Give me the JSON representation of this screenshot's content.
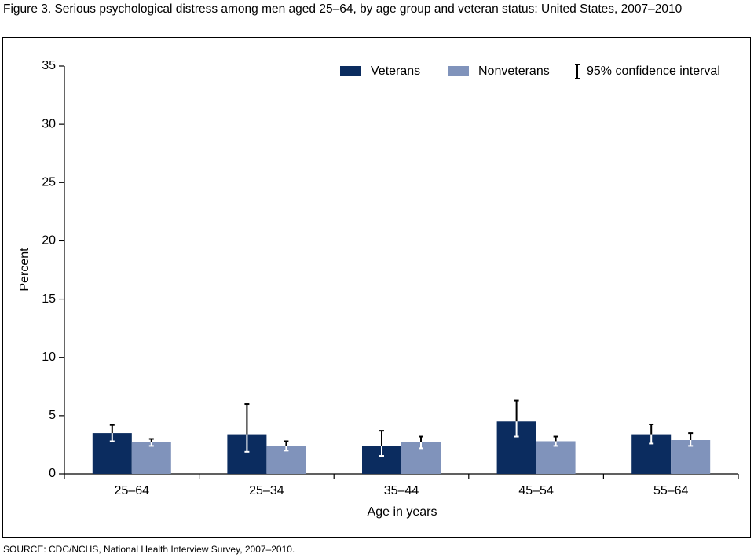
{
  "chart_data": {
    "type": "bar",
    "title": "Figure 3. Serious psychological distress among men aged 25–64, by age group and veteran status:  United States, 2007–2010",
    "xlabel": "Age in years",
    "ylabel": "Percent",
    "categories": [
      "25–64",
      "25–34",
      "35–44",
      "45–54",
      "55–64"
    ],
    "series": [
      {
        "name": "Veterans",
        "color": "#0b2c5f",
        "values": [
          3.5,
          3.4,
          2.4,
          4.5,
          3.4
        ],
        "ci_low": [
          2.8,
          1.9,
          1.55,
          3.2,
          2.6
        ],
        "ci_high": [
          4.2,
          6.0,
          3.7,
          6.3,
          4.25
        ]
      },
      {
        "name": "Nonveterans",
        "color": "#8093bb",
        "values": [
          2.7,
          2.4,
          2.7,
          2.8,
          2.9
        ],
        "ci_low": [
          2.4,
          2.0,
          2.2,
          2.4,
          2.4
        ],
        "ci_high": [
          3.0,
          2.8,
          3.2,
          3.2,
          3.5
        ]
      }
    ],
    "ci_legend": "95% confidence interval",
    "ylim": [
      0,
      35
    ],
    "yticks": [
      0,
      5,
      10,
      15,
      20,
      25,
      30,
      35
    ],
    "source": "SOURCE: CDC/NCHS, National Health Interview Survey, 2007–2010."
  }
}
